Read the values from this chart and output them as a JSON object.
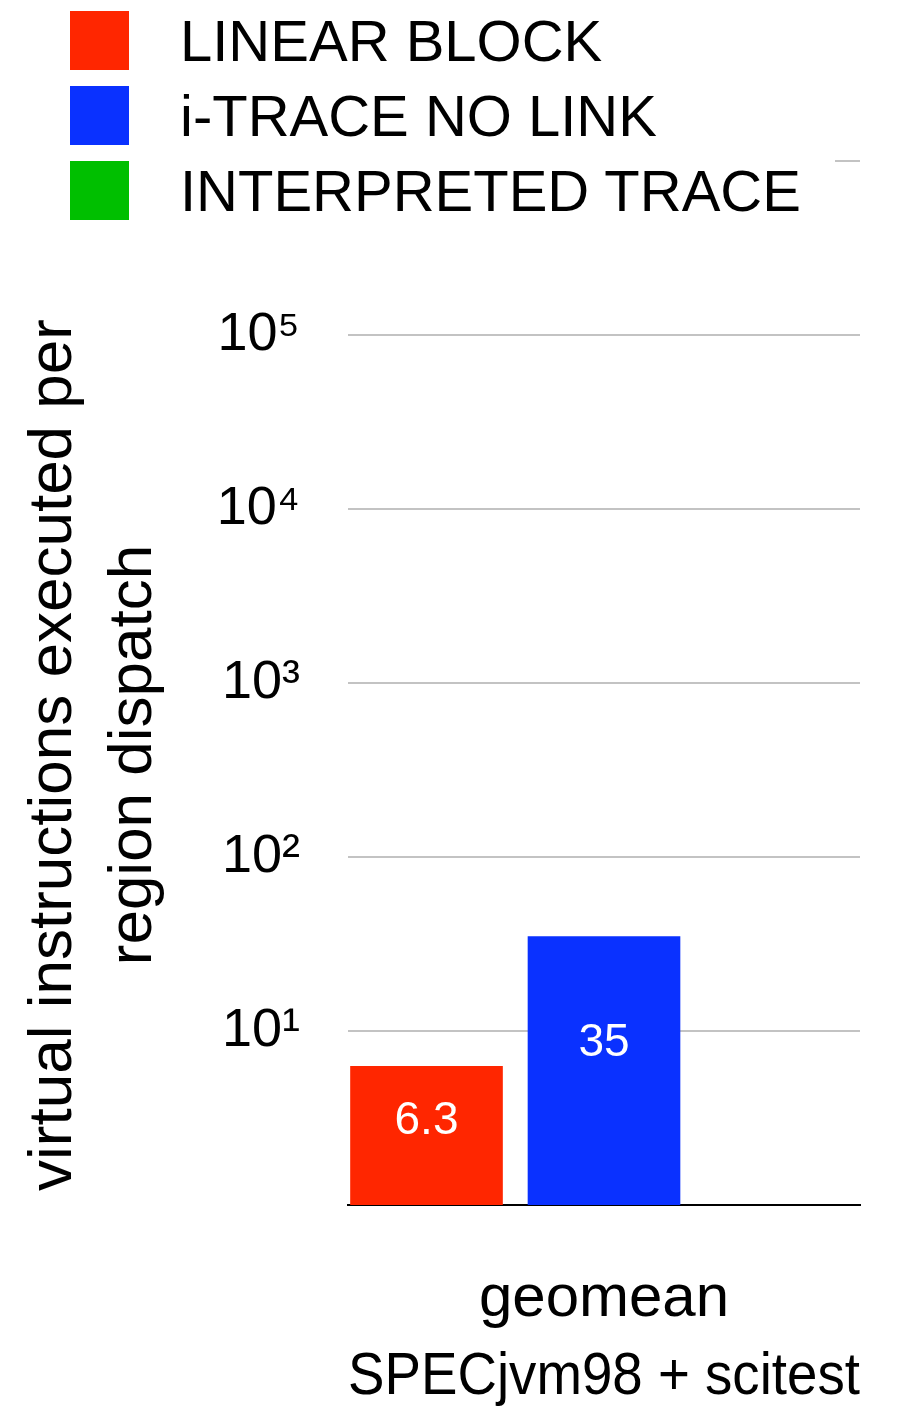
{
  "chart_data": {
    "type": "bar",
    "categories": [
      "geomean"
    ],
    "xlabel": "SPECjvm98 + scitest",
    "ylabel": "virtual instructions executed per region dispatch",
    "series": [
      {
        "name": "LINEAR BLOCK",
        "color": "#ff2600",
        "values": [
          6.3
        ]
      },
      {
        "name": "i-TRACE NO LINK",
        "color": "#0a31ff",
        "values": [
          35
        ]
      },
      {
        "name": "INTERPRETED TRACE",
        "color": "#00bf00",
        "values": [
          null
        ]
      }
    ],
    "log": "y",
    "ylim": [
      1,
      1000000
    ],
    "yticks": [
      {
        "value": 1,
        "label": null
      },
      {
        "value": 10,
        "label": "10¹"
      },
      {
        "value": 100,
        "label": "10²"
      },
      {
        "value": 1000,
        "label": "10³"
      },
      {
        "value": 10000,
        "label": "10⁴"
      },
      {
        "value": 100000,
        "label": "10⁵"
      },
      {
        "value": 1000000,
        "label": null
      }
    ],
    "grid": "y",
    "legend": "top left",
    "data_labels": true
  }
}
